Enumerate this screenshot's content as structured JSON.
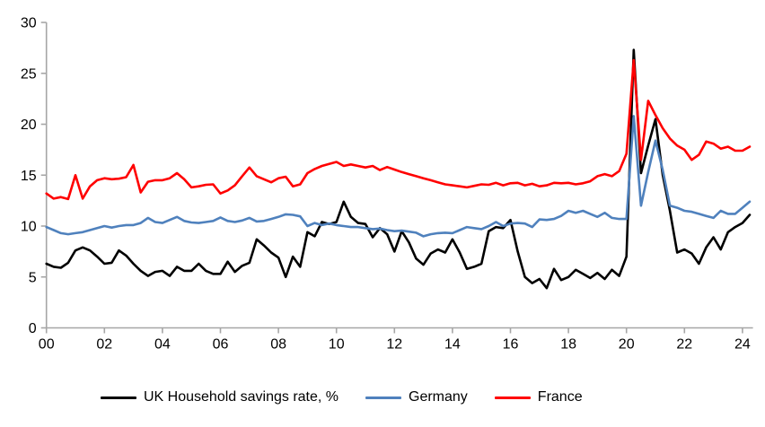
{
  "chart_data": {
    "type": "line",
    "title": "",
    "xlabel": "",
    "ylabel": "",
    "ylim": [
      0,
      30
    ],
    "yticks": [
      0,
      5,
      10,
      15,
      20,
      25,
      30
    ],
    "ytick_labels": [
      "0",
      "5",
      "10",
      "15",
      "20",
      "25",
      "30"
    ],
    "xticks": [
      2000,
      2002,
      2004,
      2006,
      2008,
      2010,
      2012,
      2014,
      2016,
      2018,
      2020,
      2022,
      2024
    ],
    "xtick_labels": [
      "00",
      "02",
      "04",
      "06",
      "08",
      "10",
      "12",
      "14",
      "16",
      "18",
      "20",
      "22",
      "24"
    ],
    "xlim": [
      2000,
      2024.3
    ],
    "grid": false,
    "legend_position": "bottom",
    "axis_color": "#A6A6A6",
    "text_color": "#000000",
    "frequency": "quarterly",
    "x": [
      2000.0,
      2000.25,
      2000.5,
      2000.75,
      2001.0,
      2001.25,
      2001.5,
      2001.75,
      2002.0,
      2002.25,
      2002.5,
      2002.75,
      2003.0,
      2003.25,
      2003.5,
      2003.75,
      2004.0,
      2004.25,
      2004.5,
      2004.75,
      2005.0,
      2005.25,
      2005.5,
      2005.75,
      2006.0,
      2006.25,
      2006.5,
      2006.75,
      2007.0,
      2007.25,
      2007.5,
      2007.75,
      2008.0,
      2008.25,
      2008.5,
      2008.75,
      2009.0,
      2009.25,
      2009.5,
      2009.75,
      2010.0,
      2010.25,
      2010.5,
      2010.75,
      2011.0,
      2011.25,
      2011.5,
      2011.75,
      2012.0,
      2012.25,
      2012.5,
      2012.75,
      2013.0,
      2013.25,
      2013.5,
      2013.75,
      2014.0,
      2014.25,
      2014.5,
      2014.75,
      2015.0,
      2015.25,
      2015.5,
      2015.75,
      2016.0,
      2016.25,
      2016.5,
      2016.75,
      2017.0,
      2017.25,
      2017.5,
      2017.75,
      2018.0,
      2018.25,
      2018.5,
      2018.75,
      2019.0,
      2019.25,
      2019.5,
      2019.75,
      2020.0,
      2020.25,
      2020.5,
      2020.75,
      2021.0,
      2021.25,
      2021.5,
      2021.75,
      2022.0,
      2022.25,
      2022.5,
      2022.75,
      2023.0,
      2023.25,
      2023.5,
      2023.75,
      2024.0,
      2024.25
    ],
    "series": [
      {
        "name": "UK Household savings rate, %",
        "color": "#000000",
        "values": [
          6.3,
          6.0,
          5.9,
          6.4,
          7.6,
          7.9,
          7.6,
          7.0,
          6.3,
          6.4,
          7.6,
          7.1,
          6.3,
          5.6,
          5.1,
          5.5,
          5.6,
          5.1,
          6.0,
          5.6,
          5.6,
          6.3,
          5.6,
          5.3,
          5.3,
          6.5,
          5.5,
          6.1,
          6.4,
          8.7,
          8.1,
          7.4,
          6.9,
          5.0,
          7.0,
          6.0,
          9.4,
          9.0,
          10.4,
          10.2,
          10.4,
          12.4,
          10.9,
          10.3,
          10.2,
          8.9,
          9.8,
          9.2,
          7.5,
          9.5,
          8.4,
          6.8,
          6.2,
          7.3,
          7.7,
          7.4,
          8.7,
          7.4,
          5.8,
          6.0,
          6.3,
          9.5,
          9.9,
          9.8,
          10.6,
          7.5,
          5.0,
          4.4,
          4.8,
          3.9,
          5.8,
          4.7,
          5.0,
          5.7,
          5.3,
          4.9,
          5.4,
          4.8,
          5.7,
          5.1,
          7.0,
          27.3,
          15.2,
          17.9,
          20.5,
          15.0,
          11.5,
          7.4,
          7.7,
          7.3,
          6.3,
          7.9,
          8.9,
          7.7,
          9.4,
          9.9,
          10.3,
          11.1
        ]
      },
      {
        "name": "Germany",
        "color": "#4F81BD",
        "values": [
          9.9,
          9.6,
          9.3,
          9.2,
          9.3,
          9.4,
          9.6,
          9.8,
          10.0,
          9.85,
          10.0,
          10.1,
          10.1,
          10.3,
          10.8,
          10.4,
          10.3,
          10.6,
          10.9,
          10.5,
          10.35,
          10.3,
          10.4,
          10.5,
          10.85,
          10.5,
          10.4,
          10.55,
          10.8,
          10.45,
          10.5,
          10.7,
          10.9,
          11.15,
          11.1,
          10.95,
          10.0,
          10.3,
          10.1,
          10.25,
          10.1,
          10.0,
          9.9,
          9.9,
          9.8,
          9.7,
          9.75,
          9.6,
          9.5,
          9.55,
          9.45,
          9.35,
          9.0,
          9.2,
          9.3,
          9.35,
          9.3,
          9.6,
          9.9,
          9.8,
          9.7,
          10.0,
          10.4,
          10.0,
          10.25,
          10.3,
          10.25,
          9.9,
          10.65,
          10.6,
          10.7,
          11.0,
          11.5,
          11.3,
          11.5,
          11.2,
          10.9,
          11.3,
          10.8,
          10.7,
          10.7,
          20.8,
          12.0,
          15.3,
          18.4,
          15.5,
          12.0,
          11.8,
          11.5,
          11.4,
          11.2,
          11.0,
          10.8,
          11.5,
          11.2,
          11.2,
          11.8,
          12.4
        ]
      },
      {
        "name": "France",
        "color": "#FF0000",
        "values": [
          13.2,
          12.7,
          12.85,
          12.65,
          15.0,
          12.7,
          13.9,
          14.5,
          14.7,
          14.6,
          14.65,
          14.8,
          16.0,
          13.3,
          14.35,
          14.5,
          14.5,
          14.7,
          15.2,
          14.6,
          13.8,
          13.9,
          14.05,
          14.1,
          13.2,
          13.5,
          14.0,
          14.9,
          15.75,
          14.9,
          14.6,
          14.3,
          14.7,
          14.85,
          13.9,
          14.1,
          15.2,
          15.6,
          15.9,
          16.1,
          16.3,
          15.9,
          16.05,
          15.9,
          15.75,
          15.9,
          15.5,
          15.8,
          15.55,
          15.3,
          15.1,
          14.9,
          14.7,
          14.5,
          14.3,
          14.1,
          14.0,
          13.9,
          13.8,
          13.95,
          14.1,
          14.05,
          14.25,
          14.0,
          14.2,
          14.25,
          14.0,
          14.15,
          13.9,
          14.0,
          14.25,
          14.2,
          14.25,
          14.1,
          14.2,
          14.4,
          14.9,
          15.1,
          14.9,
          15.4,
          17.1,
          26.3,
          16.5,
          22.3,
          20.9,
          19.6,
          18.6,
          17.9,
          17.5,
          16.5,
          17.0,
          18.3,
          18.1,
          17.6,
          17.8,
          17.4,
          17.4,
          17.8
        ]
      }
    ]
  },
  "legend": {
    "uk_label": "UK Household savings rate, %",
    "germany_label": "Germany",
    "france_label": "France"
  }
}
